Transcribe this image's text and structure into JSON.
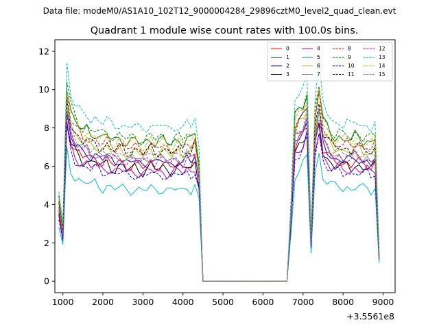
{
  "header_text": "Data file: modeM0/AS1A10_102T12_9000004284_29896cztM0_level2_quad_clean.evt",
  "chart_data": {
    "type": "line",
    "title": "Quadrant 1 module wise count rates with 100.0s bins.",
    "xlabel": "",
    "ylabel": "",
    "x_offset_label": "+3.5561e8",
    "xlim": [
      800,
      9300
    ],
    "ylim": [
      -0.6,
      12.6
    ],
    "x_ticks": [
      1000,
      2000,
      3000,
      4000,
      5000,
      6000,
      7000,
      8000,
      9000
    ],
    "y_ticks": [
      0,
      2,
      4,
      6,
      8,
      10,
      12
    ],
    "legend_location": "upper right",
    "x": [
      900,
      1000,
      1100,
      1200,
      1300,
      1400,
      1500,
      1600,
      1700,
      1800,
      1900,
      2000,
      2100,
      2200,
      2300,
      2400,
      2500,
      2600,
      2700,
      2800,
      2900,
      3000,
      3100,
      3200,
      3300,
      3400,
      3500,
      3600,
      3700,
      3800,
      3900,
      4000,
      4100,
      4200,
      4300,
      4400,
      4500,
      4600,
      6600,
      6700,
      6800,
      6900,
      7000,
      7100,
      7200,
      7300,
      7400,
      7500,
      7600,
      7700,
      7800,
      7900,
      8000,
      8100,
      8200,
      8300,
      8400,
      8500,
      8600,
      8700,
      8800,
      8900
    ],
    "profile": [
      0.5,
      0.32,
      1.18,
      1.02,
      0.96,
      0.93,
      0.9,
      0.91,
      0.88,
      0.89,
      0.87,
      0.86,
      0.88,
      0.85,
      0.84,
      0.86,
      0.85,
      0.83,
      0.84,
      0.85,
      0.83,
      0.82,
      0.84,
      0.86,
      0.83,
      0.84,
      0.85,
      0.83,
      0.82,
      0.84,
      0.85,
      0.83,
      0.86,
      0.84,
      0.88,
      0.72,
      0.0,
      0.0,
      0.0,
      0.44,
      0.98,
      1.02,
      1.05,
      1.12,
      0.26,
      1.0,
      1.16,
      0.96,
      0.92,
      0.88,
      0.86,
      0.87,
      0.85,
      0.86,
      0.84,
      0.87,
      0.86,
      0.84,
      0.85,
      0.83,
      0.86,
      0.16
    ],
    "series": [
      {
        "name": "0",
        "color": "#ff0000",
        "dash": "solid",
        "level": 7.2
      },
      {
        "name": "1",
        "color": "#008000",
        "dash": "solid",
        "level": 8.7
      },
      {
        "name": "2",
        "color": "#0000ff",
        "dash": "solid",
        "level": 7.4
      },
      {
        "name": "3",
        "color": "#000000",
        "dash": "solid",
        "level": 7.0
      },
      {
        "name": "4",
        "color": "#bf00bf",
        "dash": "solid",
        "level": 6.8
      },
      {
        "name": "5",
        "color": "#00bfbf",
        "dash": "solid",
        "level": 5.7
      },
      {
        "name": "6",
        "color": "#bfbf00",
        "dash": "solid",
        "level": 8.0
      },
      {
        "name": "7",
        "color": "#808080",
        "dash": "solid",
        "level": 7.6
      },
      {
        "name": "8",
        "color": "#ff0000",
        "dash": "dashed",
        "level": 8.3
      },
      {
        "name": "9",
        "color": "#008000",
        "dash": "dashed",
        "level": 8.9
      },
      {
        "name": "10",
        "color": "#0000ff",
        "dash": "dashed",
        "level": 6.6
      },
      {
        "name": "11",
        "color": "#000000",
        "dash": "dashed",
        "level": 8.1
      },
      {
        "name": "12",
        "color": "#bf00bf",
        "dash": "dashed",
        "level": 7.5
      },
      {
        "name": "13",
        "color": "#00bfbf",
        "dash": "dashed",
        "level": 9.6
      },
      {
        "name": "14",
        "color": "#bfbf00",
        "dash": "dashed",
        "level": 8.6
      },
      {
        "name": "15",
        "color": "#808080",
        "dash": "dashed",
        "level": 7.8
      }
    ]
  }
}
